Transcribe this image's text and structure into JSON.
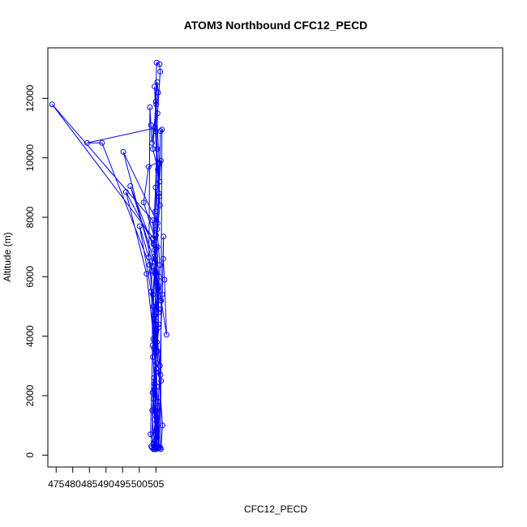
{
  "chart_data": {
    "type": "scatter",
    "title": "ATOM3 Northbound CFC12_PECD",
    "xlabel": "CFC12_PECD",
    "ylabel": "Altitude (m)",
    "xlim": [
      472.5,
      609.3
    ],
    "ylim": [
      -400,
      13700
    ],
    "xticks": [
      475,
      480,
      485,
      490,
      495,
      500,
      505
    ],
    "yticks": [
      0,
      2000,
      4000,
      6000,
      8000,
      10000,
      12000
    ],
    "color": "#0000ff",
    "marker": "open-circle",
    "connected": true,
    "series": [
      {
        "points": [
          [
            504.7,
            200
          ],
          [
            503.8,
            250
          ],
          [
            505.2,
            1500
          ],
          [
            504.1,
            3300
          ],
          [
            505.6,
            5600
          ],
          [
            504.3,
            7100
          ],
          [
            506.0,
            9800
          ],
          [
            505.1,
            11800
          ],
          [
            504.6,
            12400
          ],
          [
            505.4,
            10300
          ],
          [
            504.9,
            8200
          ],
          [
            506.2,
            6400
          ],
          [
            505.0,
            4500
          ],
          [
            506.6,
            2500
          ],
          [
            505.3,
            250
          ],
          [
            503.6,
            300
          ],
          [
            504.5,
            2200
          ],
          [
            505.8,
            4300
          ],
          [
            504.7,
            6600
          ],
          [
            505.9,
            8800
          ],
          [
            504.8,
            10900
          ],
          [
            505.2,
            13200
          ],
          [
            506.1,
            13150
          ],
          [
            506.3,
            12900
          ],
          [
            505.5,
            11500
          ],
          [
            504.9,
            9000
          ],
          [
            504.2,
            7300
          ],
          [
            473.8,
            11800
          ],
          [
            504.0,
            7900
          ],
          [
            505.7,
            5700
          ],
          [
            504.4,
            3600
          ],
          [
            505.6,
            1800
          ],
          [
            504.9,
            300
          ],
          [
            506.0,
            250
          ],
          [
            505.1,
            2900
          ],
          [
            504.2,
            5000
          ],
          [
            505.4,
            7600
          ],
          [
            506.1,
            9200
          ],
          [
            504.7,
            11000
          ],
          [
            484.3,
            10500
          ],
          [
            488.8,
            10500
          ],
          [
            503.1,
            6400
          ],
          [
            505.0,
            4100
          ],
          [
            504.6,
            1200
          ],
          [
            505.7,
            230
          ],
          [
            504.4,
            200
          ],
          [
            503.9,
            1500
          ],
          [
            505.3,
            3800
          ],
          [
            504.8,
            6100
          ],
          [
            495.2,
            10200
          ],
          [
            505.5,
            7800
          ],
          [
            504.1,
            5400
          ],
          [
            506.4,
            2700
          ],
          [
            505.9,
            250
          ],
          [
            504.6,
            2400
          ],
          [
            505.8,
            4800
          ],
          [
            504.3,
            7100
          ],
          [
            496.0,
            8850
          ],
          [
            502.2,
            6100
          ],
          [
            505.2,
            3100
          ],
          [
            504.9,
            800
          ],
          [
            505.6,
            300
          ],
          [
            506.5,
            200
          ],
          [
            507.0,
            1000
          ],
          [
            505.4,
            3500
          ],
          [
            506.0,
            6000
          ],
          [
            497.3,
            9050
          ],
          [
            504.6,
            6900
          ],
          [
            505.8,
            4400
          ],
          [
            504.0,
            2100
          ],
          [
            505.2,
            250
          ],
          [
            505.0,
            2800
          ],
          [
            503.6,
            5500
          ],
          [
            500.1,
            7700
          ],
          [
            505.1,
            5800
          ],
          [
            504.2,
            3900
          ],
          [
            505.7,
            1600
          ],
          [
            504.5,
            250
          ],
          [
            505.3,
            2300
          ],
          [
            504.7,
            4700
          ],
          [
            505.5,
            7000
          ],
          [
            501.3,
            8500
          ],
          [
            502.8,
            9700
          ],
          [
            506.5,
            9900
          ],
          [
            505.0,
            7400
          ],
          [
            506.3,
            5200
          ],
          [
            506.6,
            5200
          ],
          [
            508.2,
            4050
          ],
          [
            507.6,
            5900
          ],
          [
            507.2,
            6600
          ],
          [
            507.3,
            7350
          ],
          [
            506.9,
            5400
          ],
          [
            506.2,
            3000
          ],
          [
            505.3,
            600
          ],
          [
            504.3,
            200
          ],
          [
            503.4,
            700
          ],
          [
            504.0,
            3700
          ],
          [
            503.7,
            6200
          ],
          [
            502.9,
            6650
          ],
          [
            503.2,
            11700
          ],
          [
            503.5,
            11100
          ],
          [
            503.8,
            10500
          ],
          [
            505.7,
            12200
          ],
          [
            505.4,
            12550
          ],
          [
            505.0,
            11900
          ],
          [
            504.1,
            10300
          ],
          [
            505.6,
            9600
          ],
          [
            506.2,
            8400
          ],
          [
            504.8,
            6700
          ],
          [
            505.9,
            4900
          ],
          [
            504.5,
            2600
          ],
          [
            505.1,
            200
          ],
          [
            506.4,
            250
          ],
          [
            506.8,
            10950
          ],
          [
            506.4,
            10900
          ],
          [
            506.0,
            8700
          ],
          [
            504.7,
            6500
          ],
          [
            505.2,
            4200
          ],
          [
            504.3,
            1900
          ],
          [
            505.0,
            230
          ]
        ]
      }
    ]
  }
}
